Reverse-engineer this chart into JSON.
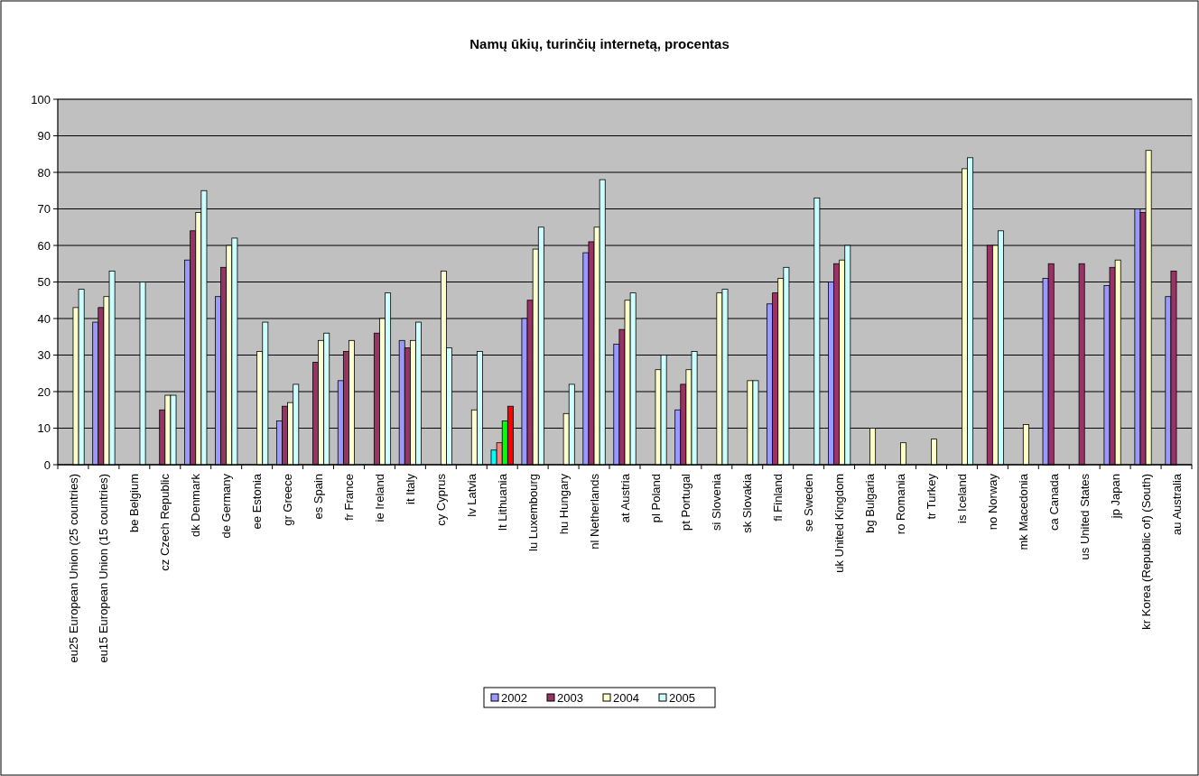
{
  "chart_data": {
    "type": "bar",
    "title": "Namų ūkių, turinčių internetą, procentas",
    "categories": [
      "eu25 European Union (25 countries)",
      "eu15 European Union (15 countries)",
      "be Belgium",
      "cz Czech Republic",
      "dk Denmark",
      "de Germany",
      "ee Estonia",
      "gr Greece",
      "es Spain",
      "fr France",
      "ie Ireland",
      "it Italy",
      "cy Cyprus",
      "lv Latvia",
      "lt Lithuania",
      "lu Luxembourg",
      "hu Hungary",
      "nl Netherlands",
      "at Austria",
      "pl Poland",
      "pt Portugal",
      "si Slovenia",
      "sk Slovakia",
      "fi Finland",
      "se Sweden",
      "uk United Kingdom",
      "bg Bulgaria",
      "ro Romania",
      "tr Turkey",
      "is Iceland",
      "no Norway",
      "mk Macedonia",
      "ca Canada",
      "us United States",
      "jp Japan",
      "kr Korea (Republic of) (South)",
      "au Australia"
    ],
    "series": [
      {
        "name": "2002",
        "color": "#9999ff",
        "colors": [
          null,
          "#9999ff",
          null,
          null,
          "#9999ff",
          "#9999ff",
          null,
          "#9999ff",
          null,
          "#9999ff",
          null,
          "#9999ff",
          null,
          null,
          "#00ffff",
          "#9999ff",
          null,
          "#9999ff",
          "#9999ff",
          null,
          "#9999ff",
          null,
          null,
          "#9999ff",
          null,
          "#9999ff",
          null,
          null,
          null,
          null,
          null,
          null,
          "#9999ff",
          null,
          "#9999ff",
          "#9999ff",
          "#9999ff"
        ],
        "values": [
          null,
          39,
          null,
          null,
          56,
          46,
          null,
          12,
          null,
          23,
          null,
          34,
          null,
          null,
          4,
          40,
          null,
          58,
          33,
          null,
          15,
          null,
          null,
          44,
          null,
          50,
          null,
          null,
          null,
          null,
          null,
          null,
          51,
          null,
          49,
          70,
          46
        ]
      },
      {
        "name": "2003",
        "color": "#993366",
        "colors": [
          null,
          "#993366",
          null,
          "#993366",
          "#993366",
          "#993366",
          null,
          "#993366",
          "#993366",
          "#993366",
          "#993366",
          "#993366",
          null,
          null,
          "#ff8080",
          "#993366",
          null,
          "#993366",
          "#993366",
          null,
          "#993366",
          null,
          null,
          "#993366",
          null,
          "#993366",
          null,
          null,
          null,
          null,
          "#993366",
          null,
          "#993366",
          "#993366",
          "#993366",
          "#993366",
          "#993366"
        ],
        "values": [
          null,
          43,
          null,
          15,
          64,
          54,
          null,
          16,
          28,
          31,
          36,
          32,
          null,
          null,
          6,
          45,
          null,
          61,
          37,
          null,
          22,
          null,
          null,
          47,
          null,
          55,
          null,
          null,
          null,
          null,
          60,
          null,
          55,
          55,
          54,
          69,
          53
        ]
      },
      {
        "name": "2004",
        "color": "#ffffcc",
        "colors": [
          "#ffffcc",
          "#ffffcc",
          null,
          "#ffffcc",
          "#ffffcc",
          "#ffffcc",
          "#ffffcc",
          "#ffffcc",
          "#ffffcc",
          "#ffffcc",
          "#ffffcc",
          "#ffffcc",
          "#ffffcc",
          "#ffffcc",
          "#00ff00",
          "#ffffcc",
          "#ffffcc",
          "#ffffcc",
          "#ffffcc",
          "#ffffcc",
          "#ffffcc",
          "#ffffcc",
          "#ffffcc",
          "#ffffcc",
          null,
          "#ffffcc",
          "#ffffcc",
          "#ffffcc",
          "#ffffcc",
          "#ffffcc",
          "#ffffcc",
          "#ffffcc",
          null,
          null,
          "#ffffcc",
          "#ffffcc",
          null
        ],
        "values": [
          43,
          46,
          null,
          19,
          69,
          60,
          31,
          17,
          34,
          34,
          40,
          34,
          53,
          15,
          12,
          59,
          14,
          65,
          45,
          26,
          26,
          47,
          23,
          51,
          null,
          56,
          10,
          6,
          7,
          81,
          60,
          11,
          null,
          null,
          56,
          86,
          null
        ]
      },
      {
        "name": "2005",
        "color": "#ccffff",
        "colors": [
          "#ccffff",
          "#ccffff",
          "#ccffff",
          "#ccffff",
          "#ccffff",
          "#ccffff",
          "#ccffff",
          "#ccffff",
          "#ccffff",
          null,
          "#ccffff",
          "#ccffff",
          "#ccffff",
          "#ccffff",
          "#ff0000",
          "#ccffff",
          "#ccffff",
          "#ccffff",
          "#ccffff",
          "#ccffff",
          "#ccffff",
          "#ccffff",
          "#ccffff",
          "#ccffff",
          "#ccffff",
          "#ccffff",
          null,
          null,
          null,
          "#ccffff",
          "#ccffff",
          null,
          null,
          null,
          null,
          null,
          null
        ],
        "values": [
          48,
          53,
          50,
          19,
          75,
          62,
          39,
          22,
          36,
          null,
          47,
          39,
          32,
          31,
          16,
          65,
          22,
          78,
          47,
          30,
          31,
          48,
          23,
          54,
          73,
          60,
          null,
          null,
          null,
          84,
          64,
          null,
          null,
          null,
          null,
          null,
          null
        ]
      }
    ],
    "ylim": [
      0,
      100
    ],
    "yticks": [
      0,
      10,
      20,
      30,
      40,
      50,
      60,
      70,
      80,
      90,
      100
    ],
    "grid": "y",
    "legend": "bottom"
  }
}
